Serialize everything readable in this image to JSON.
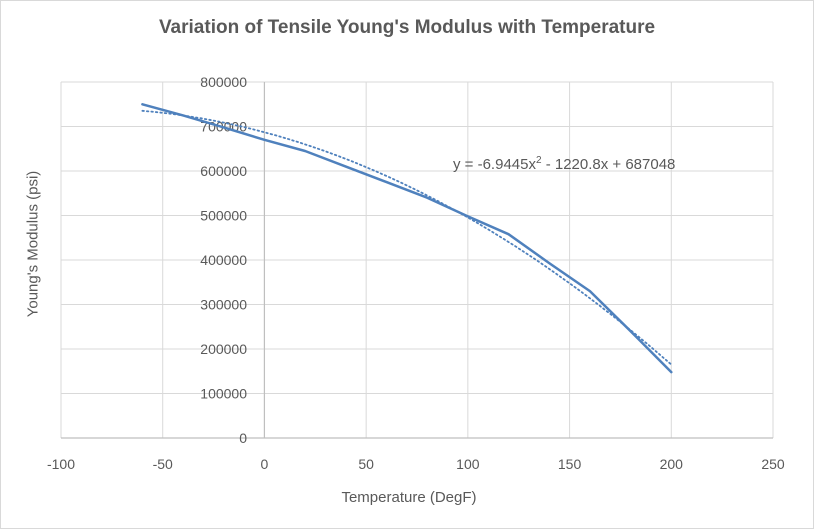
{
  "chart_data": {
    "type": "line",
    "title": "Variation of Tensile Young's Modulus with Temperature",
    "xlabel": "Temperature (DegF)",
    "ylabel": "Young's Modulus (psi)",
    "xlim": [
      -100,
      250
    ],
    "ylim": [
      0,
      800000
    ],
    "xticks": [
      -100,
      -50,
      0,
      50,
      100,
      150,
      200,
      250
    ],
    "yticks": [
      0,
      100000,
      200000,
      300000,
      400000,
      500000,
      600000,
      700000,
      800000
    ],
    "grid": true,
    "series": [
      {
        "style": "solid",
        "color": "#4f81bd",
        "x": [
          -60,
          -40,
          -20,
          0,
          20,
          40,
          60,
          80,
          100,
          120,
          140,
          160,
          180,
          200
        ],
        "y": [
          750000,
          725000,
          698000,
          670000,
          645000,
          610000,
          575000,
          540000,
          498000,
          458000,
          393000,
          330000,
          240000,
          148000
        ]
      },
      {
        "style": "dotted",
        "color": "#4f81bd",
        "trendline": "polynomial",
        "coefficients": {
          "a": -6.9445,
          "b": -1220.8,
          "c": 687048
        },
        "x_range": [
          -60,
          200
        ]
      }
    ],
    "equation_label": {
      "prefix": "y = -6.9445x",
      "sup": "2",
      "suffix": " - 1220.8x + 687048"
    }
  }
}
